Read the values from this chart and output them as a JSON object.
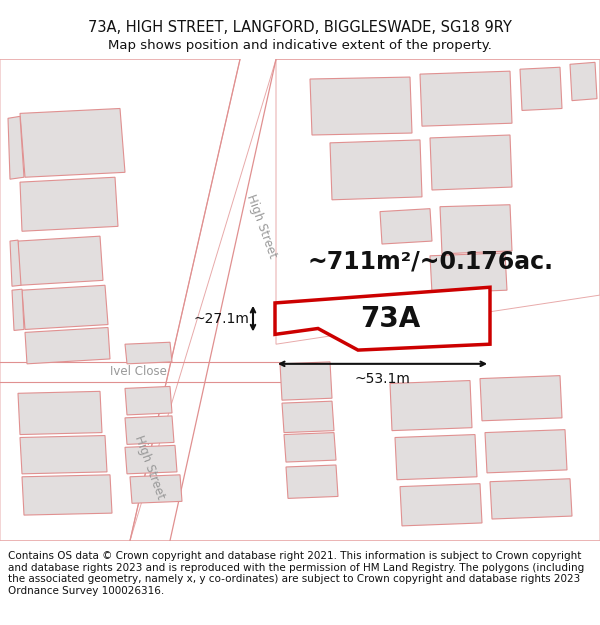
{
  "title_line1": "73A, HIGH STREET, LANGFORD, BIGGLESWADE, SG18 9RY",
  "title_line2": "Map shows position and indicative extent of the property.",
  "footer_text": "Contains OS data © Crown copyright and database right 2021. This information is subject to Crown copyright and database rights 2023 and is reproduced with the permission of HM Land Registry. The polygons (including the associated geometry, namely x, y co-ordinates) are subject to Crown copyright and database rights 2023 Ordnance Survey 100026316.",
  "label_73A": "73A",
  "label_area": "~711m²/~0.176ac.",
  "label_width": "~53.1m",
  "label_height": "~27.1m",
  "label_high_street_upper": "High Street",
  "label_high_street_lower": "High Street",
  "label_ivel_close": "Ivel Close",
  "map_bg": "#f5f2f2",
  "building_fill": "#e2dede",
  "building_edge": "#e09090",
  "road_fill": "#ffffff",
  "parcel_edge": "#e8aaaa",
  "highlight_edge": "#cc0000",
  "highlight_fill": "#ffffff",
  "dim_line_color": "#111111",
  "text_color": "#111111",
  "street_label_color": "#999999",
  "title_fontsize": 10.5,
  "subtitle_fontsize": 9.5,
  "footer_fontsize": 7.5,
  "label_73A_fontsize": 20,
  "area_fontsize": 17,
  "dim_fontsize": 10,
  "street_fontsize": 8.5
}
